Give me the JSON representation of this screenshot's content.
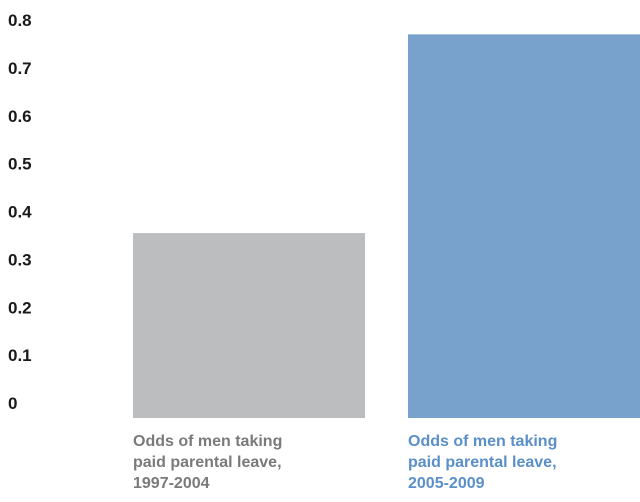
{
  "chart_data": {
    "type": "bar",
    "categories": [
      [
        "Odds of men taking",
        "paid parental leave,",
        "1997-2004"
      ],
      [
        "Odds of men taking",
        "paid parental leave,",
        "2005-2009"
      ]
    ],
    "values": [
      0.355,
      0.77
    ],
    "ylim": [
      0,
      0.8
    ],
    "yticks": [
      "0",
      "0.1",
      "0.2",
      "0.3",
      "0.4",
      "0.5",
      "0.6",
      "0.7",
      "0.8"
    ],
    "grid": false,
    "legend": "none",
    "colors": {
      "bars": [
        "#bcbdbf",
        "#78a2cc"
      ],
      "category_labels": [
        "#7a7a7a",
        "#5a8fc9"
      ],
      "tick_labels": "#1a1a1a"
    }
  }
}
